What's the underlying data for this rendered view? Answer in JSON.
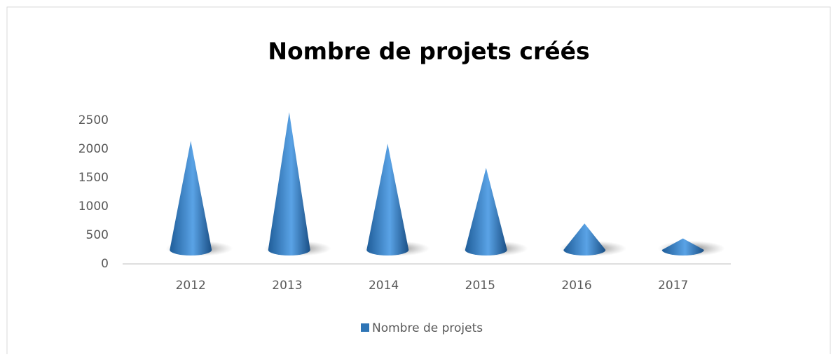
{
  "chart_data": {
    "type": "cone",
    "title": "Nombre de projets créés",
    "categories": [
      "2012",
      "2013",
      "2014",
      "2015",
      "2016",
      "2017"
    ],
    "series": [
      {
        "name": "Nombre de projets",
        "color": "#2e75b6",
        "values": [
          1900,
          2400,
          1850,
          1430,
          460,
          200
        ]
      }
    ],
    "ylim": [
      0,
      2500
    ],
    "yticks": [
      0,
      500,
      1000,
      1500,
      2000,
      2500
    ],
    "grid": false,
    "legend": "bottom"
  }
}
